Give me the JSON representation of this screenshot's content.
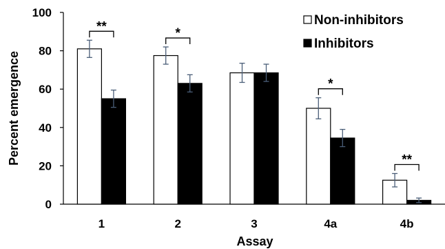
{
  "chart_data": {
    "type": "bar",
    "categories": [
      "1",
      "2",
      "3",
      "4a",
      "4b"
    ],
    "series": [
      {
        "name": "Non-inhibitors",
        "values": [
          81,
          77.5,
          68.5,
          50,
          12.5
        ],
        "errors": [
          4.5,
          4.5,
          5,
          5.5,
          3.5
        ],
        "fill": "#ffffff",
        "stroke": "#000000"
      },
      {
        "name": "Inhibitors",
        "values": [
          55,
          63,
          68.5,
          34.5,
          2
        ],
        "errors": [
          4.5,
          4.5,
          4.5,
          4.5,
          1.2
        ],
        "fill": "#000000",
        "stroke": "#000000"
      }
    ],
    "significance": [
      "**",
      "*",
      "",
      "*",
      "**"
    ],
    "xlabel": "Assay",
    "ylabel": "Percent  emergence",
    "ylim": [
      0,
      100
    ],
    "yticks": [
      0,
      20,
      40,
      60,
      80,
      100
    ],
    "grid": false,
    "legend_position": "top-right",
    "error_bar_color": "#4a5e78"
  }
}
